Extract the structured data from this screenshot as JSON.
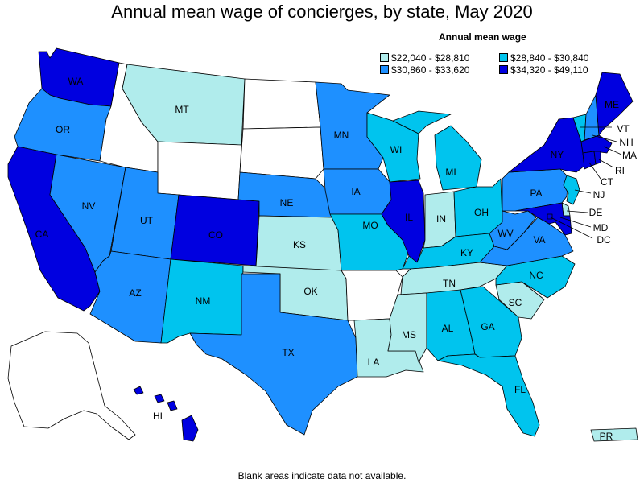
{
  "title": "Annual mean wage of concierges, by state, May 2020",
  "legend": {
    "title": "Annual mean wage",
    "bins": [
      {
        "label": "$22,040 - $28,810",
        "color": "#b0ecec"
      },
      {
        "label": "$28,840 - $30,840",
        "color": "#00c4ee"
      },
      {
        "label": "$30,860 - $33,620",
        "color": "#1e90ff"
      },
      {
        "label": "$34,320 - $49,110",
        "color": "#0000e0"
      }
    ]
  },
  "no_data_color": "#ffffff",
  "footer": "Blank areas indicate data not available.",
  "states": {
    "WA": 3,
    "OR": 2,
    "CA": 3,
    "NV": 2,
    "ID": null,
    "MT": 0,
    "WY": null,
    "UT": 2,
    "AZ": 2,
    "CO": 3,
    "NM": 1,
    "ND": null,
    "SD": null,
    "NE": 2,
    "KS": 0,
    "OK": 0,
    "TX": 2,
    "MN": 2,
    "IA": 2,
    "MO": 1,
    "AR": null,
    "LA": 0,
    "WI": 1,
    "IL": 3,
    "MI": 1,
    "IN": 0,
    "OH": 1,
    "KY": 1,
    "TN": 0,
    "MS": 0,
    "AL": 1,
    "GA": 1,
    "FL": 1,
    "SC": 0,
    "NC": 1,
    "VA": 2,
    "WV": 2,
    "PA": 2,
    "NY": 3,
    "VT": 1,
    "NH": 2,
    "ME": 3,
    "MA": 3,
    "RI": 3,
    "CT": 3,
    "NJ": 1,
    "DE": 0,
    "MD": 3,
    "DC": 3,
    "AK": null,
    "HI": 3,
    "PR": 0
  },
  "labels": {
    "WA": "WA",
    "OR": "OR",
    "CA": "CA",
    "NV": "NV",
    "MT": "MT",
    "UT": "UT",
    "AZ": "AZ",
    "CO": "CO",
    "NM": "NM",
    "NE": "NE",
    "KS": "KS",
    "OK": "OK",
    "TX": "TX",
    "MN": "MN",
    "IA": "IA",
    "MO": "MO",
    "LA": "LA",
    "WI": "WI",
    "IL": "IL",
    "MI": "MI",
    "IN": "IN",
    "OH": "OH",
    "KY": "KY",
    "TN": "TN",
    "MS": "MS",
    "AL": "AL",
    "GA": "GA",
    "FL": "FL",
    "SC": "SC",
    "NC": "NC",
    "VA": "VA",
    "WV": "WV",
    "PA": "PA",
    "NY": "NY",
    "VT": "VT",
    "NH": "NH",
    "ME": "ME",
    "MA": "MA",
    "RI": "RI",
    "CT": "CT",
    "NJ": "NJ",
    "DE": "DE",
    "MD": "MD",
    "DC": "DC",
    "HI": "HI",
    "PR": "PR"
  }
}
